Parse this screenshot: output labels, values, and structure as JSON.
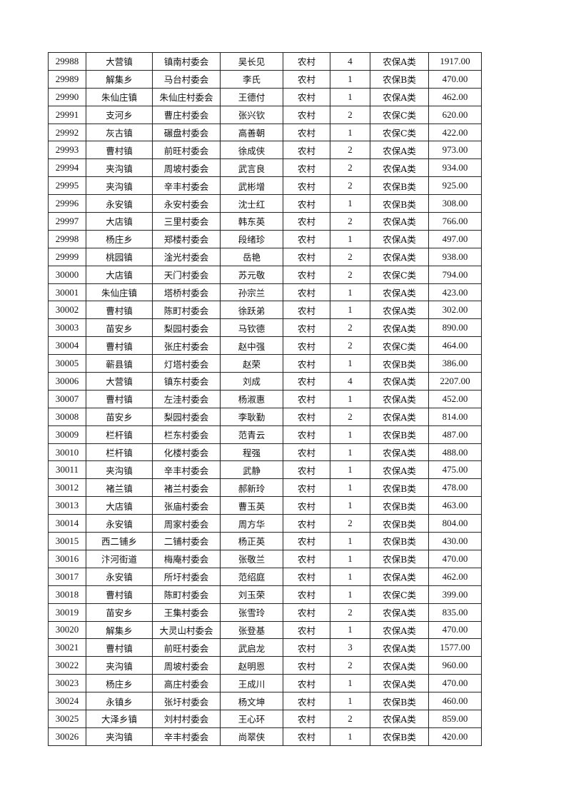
{
  "table": {
    "rows": [
      [
        "29988",
        "大营镇",
        "镇南村委会",
        "吴长见",
        "农村",
        "4",
        "农保A类",
        "1917.00"
      ],
      [
        "29989",
        "解集乡",
        "马台村委会",
        "李氏",
        "农村",
        "1",
        "农保B类",
        "470.00"
      ],
      [
        "29990",
        "朱仙庄镇",
        "朱仙庄村委会",
        "王德付",
        "农村",
        "1",
        "农保A类",
        "462.00"
      ],
      [
        "29991",
        "支河乡",
        "曹庄村委会",
        "张兴钦",
        "农村",
        "2",
        "农保C类",
        "620.00"
      ],
      [
        "29992",
        "灰古镇",
        "碾盘村委会",
        "高善朝",
        "农村",
        "1",
        "农保C类",
        "422.00"
      ],
      [
        "29993",
        "曹村镇",
        "前旺村委会",
        "徐成侠",
        "农村",
        "2",
        "农保A类",
        "973.00"
      ],
      [
        "29994",
        "夹沟镇",
        "周坡村委会",
        "武言良",
        "农村",
        "2",
        "农保A类",
        "934.00"
      ],
      [
        "29995",
        "夹沟镇",
        "辛丰村委会",
        "武彬增",
        "农村",
        "2",
        "农保B类",
        "925.00"
      ],
      [
        "29996",
        "永安镇",
        "永安村委会",
        "沈士红",
        "农村",
        "1",
        "农保B类",
        "308.00"
      ],
      [
        "29997",
        "大店镇",
        "三里村委会",
        "韩东英",
        "农村",
        "2",
        "农保A类",
        "766.00"
      ],
      [
        "29998",
        "杨庄乡",
        "郑楼村委会",
        "段绪珍",
        "农村",
        "1",
        "农保A类",
        "497.00"
      ],
      [
        "29999",
        "桃园镇",
        "淦光村委会",
        "岳艳",
        "农村",
        "2",
        "农保A类",
        "938.00"
      ],
      [
        "30000",
        "大店镇",
        "天门村委会",
        "苏元敬",
        "农村",
        "2",
        "农保C类",
        "794.00"
      ],
      [
        "30001",
        "朱仙庄镇",
        "塔桥村委会",
        "孙宗兰",
        "农村",
        "1",
        "农保A类",
        "423.00"
      ],
      [
        "30002",
        "曹村镇",
        "陈町村委会",
        "徐跃弟",
        "农村",
        "1",
        "农保A类",
        "302.00"
      ],
      [
        "30003",
        "苗安乡",
        "梨园村委会",
        "马钦德",
        "农村",
        "2",
        "农保A类",
        "890.00"
      ],
      [
        "30004",
        "曹村镇",
        "张庄村委会",
        "赵中强",
        "农村",
        "2",
        "农保C类",
        "464.00"
      ],
      [
        "30005",
        "蕲县镇",
        "灯塔村委会",
        "赵荣",
        "农村",
        "1",
        "农保B类",
        "386.00"
      ],
      [
        "30006",
        "大营镇",
        "镇东村委会",
        "刘成",
        "农村",
        "4",
        "农保A类",
        "2207.00"
      ],
      [
        "30007",
        "曹村镇",
        "左洼村委会",
        "杨淑惠",
        "农村",
        "1",
        "农保A类",
        "452.00"
      ],
      [
        "30008",
        "苗安乡",
        "梨园村委会",
        "李耿勤",
        "农村",
        "2",
        "农保A类",
        "814.00"
      ],
      [
        "30009",
        "栏杆镇",
        "栏东村委会",
        "范青云",
        "农村",
        "1",
        "农保B类",
        "487.00"
      ],
      [
        "30010",
        "栏杆镇",
        "化楼村委会",
        "程强",
        "农村",
        "1",
        "农保A类",
        "488.00"
      ],
      [
        "30011",
        "夹沟镇",
        "辛丰村委会",
        "武静",
        "农村",
        "1",
        "农保A类",
        "475.00"
      ],
      [
        "30012",
        "褚兰镇",
        "褚兰村委会",
        "郝新玲",
        "农村",
        "1",
        "农保B类",
        "478.00"
      ],
      [
        "30013",
        "大店镇",
        "张庙村委会",
        "曹玉英",
        "农村",
        "1",
        "农保B类",
        "463.00"
      ],
      [
        "30014",
        "永安镇",
        "周家村委会",
        "周方华",
        "农村",
        "2",
        "农保B类",
        "804.00"
      ],
      [
        "30015",
        "西二铺乡",
        "二铺村委会",
        "杨正英",
        "农村",
        "1",
        "农保B类",
        "430.00"
      ],
      [
        "30016",
        "汴河街道",
        "梅庵村委会",
        "张敬兰",
        "农村",
        "1",
        "农保B类",
        "470.00"
      ],
      [
        "30017",
        "永安镇",
        "所圩村委会",
        "范绍庭",
        "农村",
        "1",
        "农保A类",
        "462.00"
      ],
      [
        "30018",
        "曹村镇",
        "陈町村委会",
        "刘玉荣",
        "农村",
        "1",
        "农保C类",
        "399.00"
      ],
      [
        "30019",
        "苗安乡",
        "王集村委会",
        "张雪玲",
        "农村",
        "2",
        "农保A类",
        "835.00"
      ],
      [
        "30020",
        "解集乡",
        "大灵山村委会",
        "张登基",
        "农村",
        "1",
        "农保A类",
        "470.00"
      ],
      [
        "30021",
        "曹村镇",
        "前旺村委会",
        "武启龙",
        "农村",
        "3",
        "农保A类",
        "1577.00"
      ],
      [
        "30022",
        "夹沟镇",
        "周坡村委会",
        "赵明恩",
        "农村",
        "2",
        "农保A类",
        "960.00"
      ],
      [
        "30023",
        "杨庄乡",
        "高庄村委会",
        "王成川",
        "农村",
        "1",
        "农保A类",
        "470.00"
      ],
      [
        "30024",
        "永镇乡",
        "张圩村委会",
        "杨文坤",
        "农村",
        "1",
        "农保B类",
        "460.00"
      ],
      [
        "30025",
        "大泽乡镇",
        "刘村村委会",
        "王心环",
        "农村",
        "2",
        "农保A类",
        "859.00"
      ],
      [
        "30026",
        "夹沟镇",
        "辛丰村委会",
        "尚翠侠",
        "农村",
        "1",
        "农保B类",
        "420.00"
      ]
    ]
  }
}
